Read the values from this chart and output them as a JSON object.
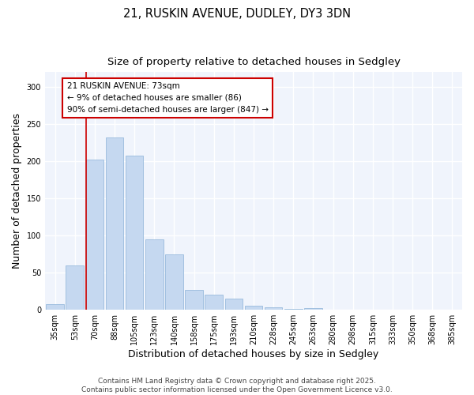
{
  "title_line1": "21, RUSKIN AVENUE, DUDLEY, DY3 3DN",
  "title_line2": "Size of property relative to detached houses in Sedgley",
  "xlabel": "Distribution of detached houses by size in Sedgley",
  "ylabel": "Number of detached properties",
  "categories": [
    "35sqm",
    "53sqm",
    "70sqm",
    "88sqm",
    "105sqm",
    "123sqm",
    "140sqm",
    "158sqm",
    "175sqm",
    "193sqm",
    "210sqm",
    "228sqm",
    "245sqm",
    "263sqm",
    "280sqm",
    "298sqm",
    "315sqm",
    "333sqm",
    "350sqm",
    "368sqm",
    "385sqm"
  ],
  "bar_values": [
    8,
    60,
    202,
    232,
    207,
    95,
    75,
    27,
    20,
    15,
    5,
    3,
    1,
    2,
    0,
    0,
    0,
    0,
    0,
    0,
    0
  ],
  "bar_color": "#c5d8f0",
  "bar_edgecolor": "#99bbdd",
  "background_color": "#ffffff",
  "plot_bg_color": "#f0f4fc",
  "grid_color": "#ffffff",
  "vline_color": "#cc0000",
  "annotation_text": "21 RUSKIN AVENUE: 73sqm\n← 9% of detached houses are smaller (86)\n90% of semi-detached houses are larger (847) →",
  "annotation_box_facecolor": "white",
  "annotation_box_edgecolor": "#cc0000",
  "ylim": [
    0,
    320
  ],
  "yticks": [
    0,
    50,
    100,
    150,
    200,
    250,
    300
  ],
  "footer_line1": "Contains HM Land Registry data © Crown copyright and database right 2025.",
  "footer_line2": "Contains public sector information licensed under the Open Government Licence v3.0.",
  "title_fontsize": 10.5,
  "subtitle_fontsize": 9.5,
  "axis_label_fontsize": 9,
  "tick_fontsize": 7,
  "annotation_fontsize": 7.5,
  "footer_fontsize": 6.5
}
